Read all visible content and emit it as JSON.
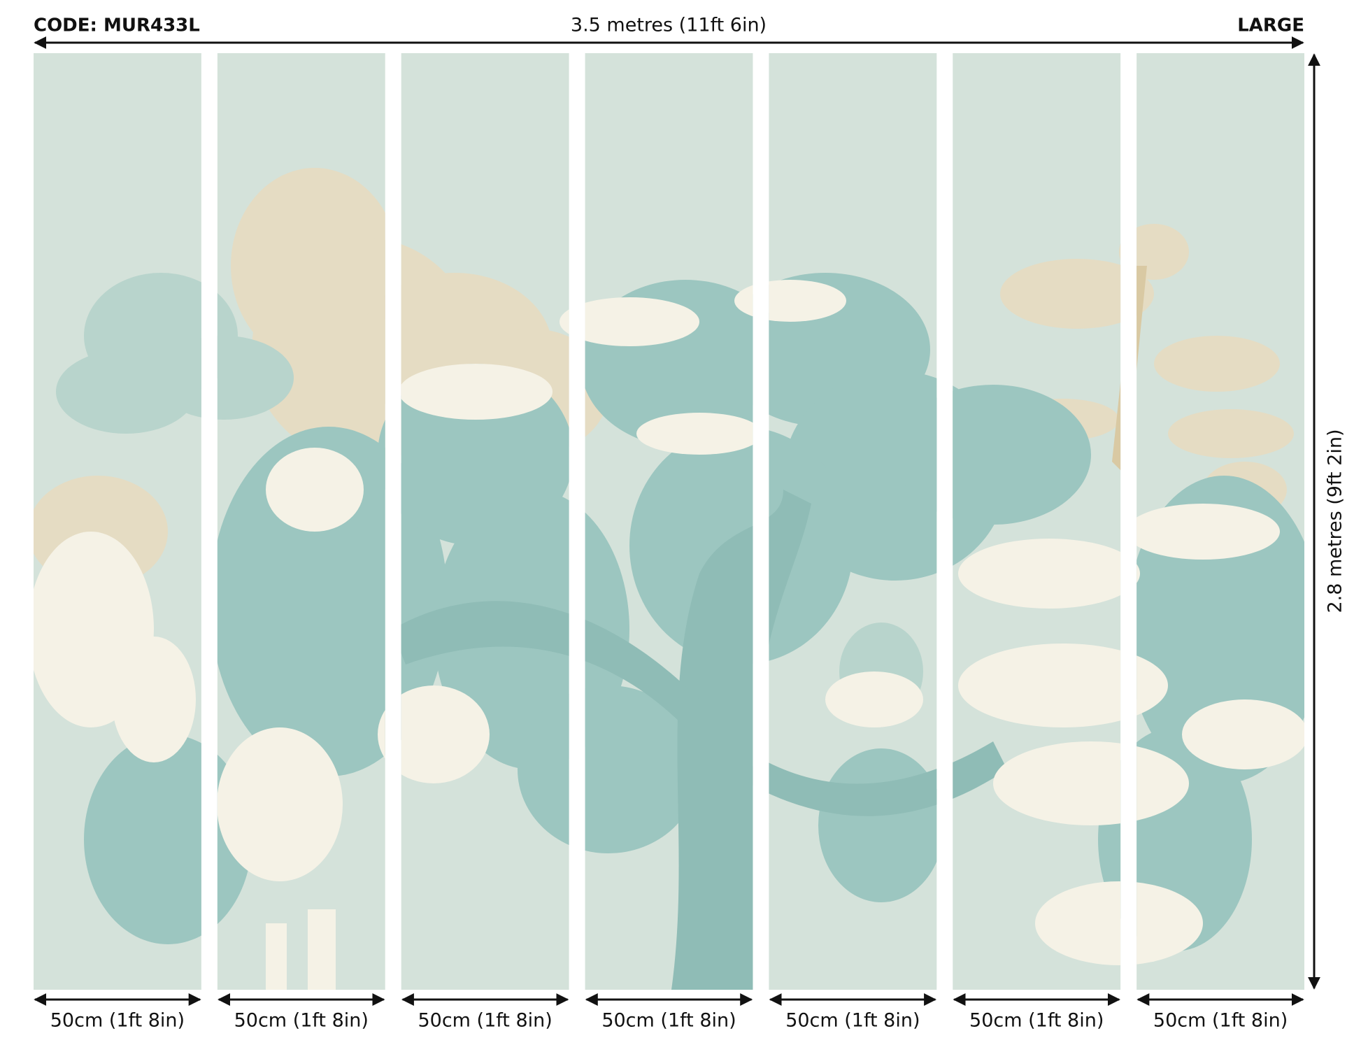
{
  "header": {
    "code": "CODE: MUR433L",
    "width_label": "3.5 metres (11ft 6in)",
    "size": "LARGE"
  },
  "height_label": "2.8 metres (9ft 2in)",
  "panels": [
    {
      "width_label": "50cm (1ft 8in)"
    },
    {
      "width_label": "50cm (1ft 8in)"
    },
    {
      "width_label": "50cm (1ft 8in)"
    },
    {
      "width_label": "50cm (1ft 8in)"
    },
    {
      "width_label": "50cm (1ft 8in)"
    },
    {
      "width_label": "50cm (1ft 8in)"
    },
    {
      "width_label": "50cm (1ft 8in)"
    }
  ]
}
